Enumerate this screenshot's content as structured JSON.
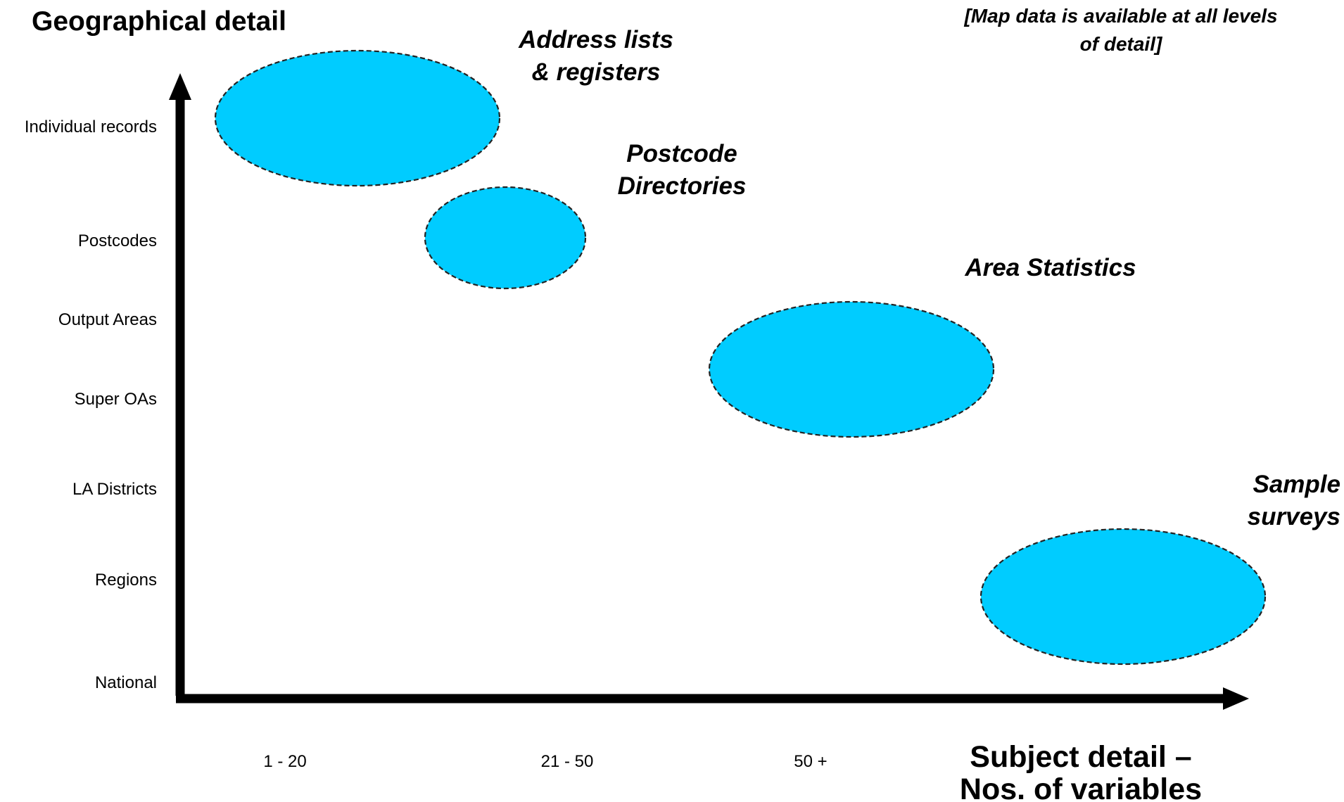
{
  "title": "Geographical detail",
  "note": {
    "line1": "[Map data is available at all levels",
    "line2": "of detail]"
  },
  "y_axis": {
    "levels": [
      "Individual records",
      "Postcodes",
      "Output Areas",
      "Super OAs",
      "LA Districts",
      "Regions",
      "National"
    ]
  },
  "x_axis": {
    "title_line1": "Subject detail –",
    "title_line2": "Nos. of variables",
    "ticks": [
      "1 - 20",
      "21 - 50",
      "50 +"
    ]
  },
  "categories": [
    {
      "line1": "Address lists",
      "line2": "& registers"
    },
    {
      "line1": "Postcode",
      "line2": "Directories"
    },
    {
      "line1": "Area Statistics",
      "line2": ""
    },
    {
      "line1": "Sample",
      "line2": "surveys"
    }
  ],
  "colors": {
    "bubble_fill": "#00ccff",
    "axis": "#000000",
    "bubble_outline": "#222222"
  }
}
